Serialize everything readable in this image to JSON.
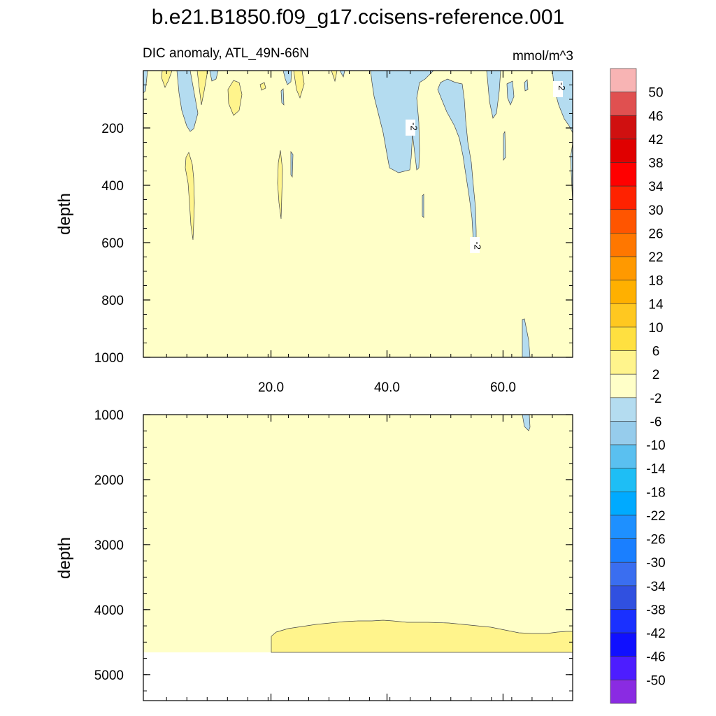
{
  "chart_data": {
    "type": "heatmap",
    "title": "b.e21.B1850.f09_g17.ccisens-reference.001",
    "subtitle_left": "DIC anomaly, ATL_49N-66N",
    "subtitle_right": "mmol/m^3",
    "x_range": [
      -2,
      72
    ],
    "x_ticks": [
      20,
      40,
      60
    ],
    "x_tick_labels": [
      "20.0",
      "40.0",
      "60.0"
    ],
    "panels": [
      {
        "name": "upper",
        "ylabel": "depth",
        "ylim": [
          0,
          1000
        ],
        "y_ticks": [
          200,
          400,
          600,
          800,
          1000
        ],
        "y_tick_labels": [
          "200",
          "400",
          "600",
          "800",
          "1000"
        ],
        "background_band": "-2 to 2",
        "contour_labels": [
          {
            "text": "-2",
            "x": 44.5,
            "depth": 195
          },
          {
            "text": "-2",
            "x": 55.5,
            "depth": 610
          },
          {
            "text": "-2",
            "x": 70,
            "depth": 55
          }
        ]
      },
      {
        "name": "lower",
        "ylabel": "depth",
        "ylim": [
          1000,
          5400
        ],
        "y_ticks": [
          1000,
          2000,
          3000,
          4000,
          5000
        ],
        "y_tick_labels": [
          "1000",
          "2000",
          "3000",
          "4000",
          "5000"
        ],
        "background_band": "-2 to 2",
        "bottom_depth": 4620,
        "positive_layer": {
          "band": "2 to 6",
          "x_start": 20.5,
          "top_depth": 4150
        }
      }
    ],
    "colorbar": {
      "labels": [
        "50",
        "46",
        "42",
        "38",
        "34",
        "30",
        "26",
        "22",
        "18",
        "14",
        "10",
        "6",
        "2",
        "-2",
        "-6",
        "-10",
        "-14",
        "-18",
        "-22",
        "-26",
        "-30",
        "-34",
        "-38",
        "-42",
        "-46",
        "-50"
      ],
      "colors": [
        "#f8b4b4",
        "#e05050",
        "#d01010",
        "#e00000",
        "#ff0000",
        "#ff2200",
        "#ff5500",
        "#ff7700",
        "#ff9900",
        "#ffb000",
        "#ffc820",
        "#ffe040",
        "#fff48c",
        "#ffffc8",
        "#b4dcf0",
        "#96ccec",
        "#5ac0f0",
        "#1ebef5",
        "#00aaff",
        "#1e90ff",
        "#1a7fff",
        "#3a6ef0",
        "#3050e0",
        "#1a30ff",
        "#1010ff",
        "#4d1dff",
        "#8a2be2"
      ]
    }
  }
}
